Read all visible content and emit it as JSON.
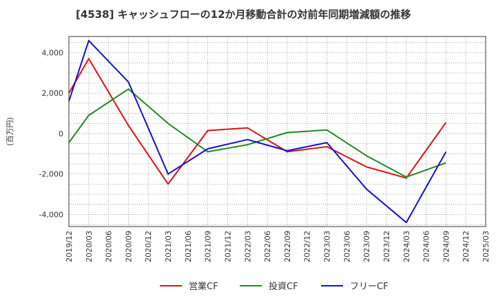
{
  "chart_data": {
    "type": "line",
    "title": "[4538]  キャッシュフローの12か月移動合計の対前年同期増減額の推移",
    "ylabel": "(百万円)",
    "xlabel": "",
    "ylim": [
      -4600,
      4800
    ],
    "yticks": [
      4000,
      2000,
      0,
      -2000,
      -4000
    ],
    "ytick_labels": [
      "4,000",
      "2,000",
      "0",
      "-2,000",
      "-4,000"
    ],
    "categories": [
      "2019/12",
      "2020/03",
      "2020/06",
      "2020/09",
      "2020/12",
      "2021/03",
      "2021/06",
      "2021/09",
      "2021/12",
      "2022/03",
      "2022/06",
      "2022/09",
      "2022/12",
      "2023/03",
      "2023/06",
      "2023/09",
      "2023/12",
      "2024/03",
      "2024/06",
      "2024/09",
      "2024/12",
      "2025/03"
    ],
    "grid": true,
    "legend_position": "bottom",
    "series": [
      {
        "name": "営業CF",
        "color": "#dd1111",
        "values": [
          2000,
          3700,
          null,
          400,
          null,
          -2500,
          null,
          150,
          null,
          280,
          null,
          -900,
          null,
          -650,
          null,
          -1650,
          null,
          -2200,
          null,
          550,
          null,
          null
        ]
      },
      {
        "name": "投資CF",
        "color": "#228822",
        "values": [
          -450,
          900,
          null,
          2200,
          null,
          500,
          null,
          -900,
          null,
          -550,
          null,
          50,
          null,
          180,
          null,
          -1100,
          null,
          -2150,
          null,
          -1450,
          null,
          null
        ]
      },
      {
        "name": "フリーCF",
        "color": "#1111cc",
        "values": [
          1600,
          4600,
          null,
          2550,
          null,
          -2000,
          null,
          -750,
          null,
          -300,
          null,
          -850,
          null,
          -450,
          null,
          -2750,
          null,
          -4400,
          null,
          -900,
          null,
          null
        ]
      }
    ]
  }
}
